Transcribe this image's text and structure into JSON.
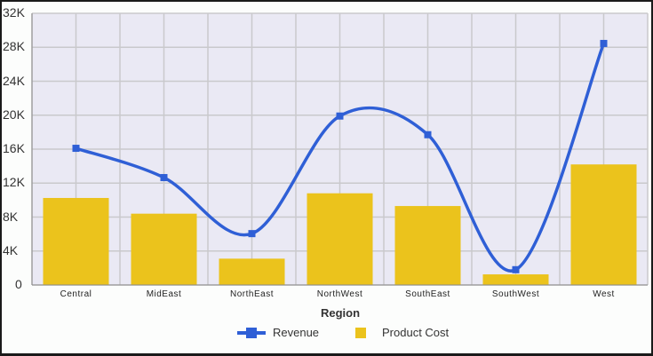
{
  "chart_data": {
    "type": "bar+line",
    "title": "",
    "xlabel": "Region",
    "ylabel": "",
    "ylim": [
      0,
      32000
    ],
    "yticks": [
      "0",
      "4K",
      "8K",
      "12K",
      "16K",
      "20K",
      "24K",
      "28K",
      "32K"
    ],
    "categories": [
      "Central",
      "MidEast",
      "NorthEast",
      "NorthWest",
      "SouthEast",
      "SouthWest",
      "West"
    ],
    "series": [
      {
        "name": "Revenue",
        "type": "line",
        "smooth": true,
        "color": "#2f5fd6",
        "values": [
          16100,
          12650,
          6050,
          19900,
          17700,
          1800,
          28450
        ]
      },
      {
        "name": "Product Cost",
        "type": "bar",
        "color": "#ebc31c",
        "values": [
          10250,
          8400,
          3100,
          10800,
          9300,
          1250,
          14200
        ]
      }
    ],
    "grid": true,
    "legend_position": "bottom",
    "plot_background": "#eae9f4"
  },
  "legend": {
    "revenue_label": "Revenue",
    "cost_label": "Product Cost"
  }
}
